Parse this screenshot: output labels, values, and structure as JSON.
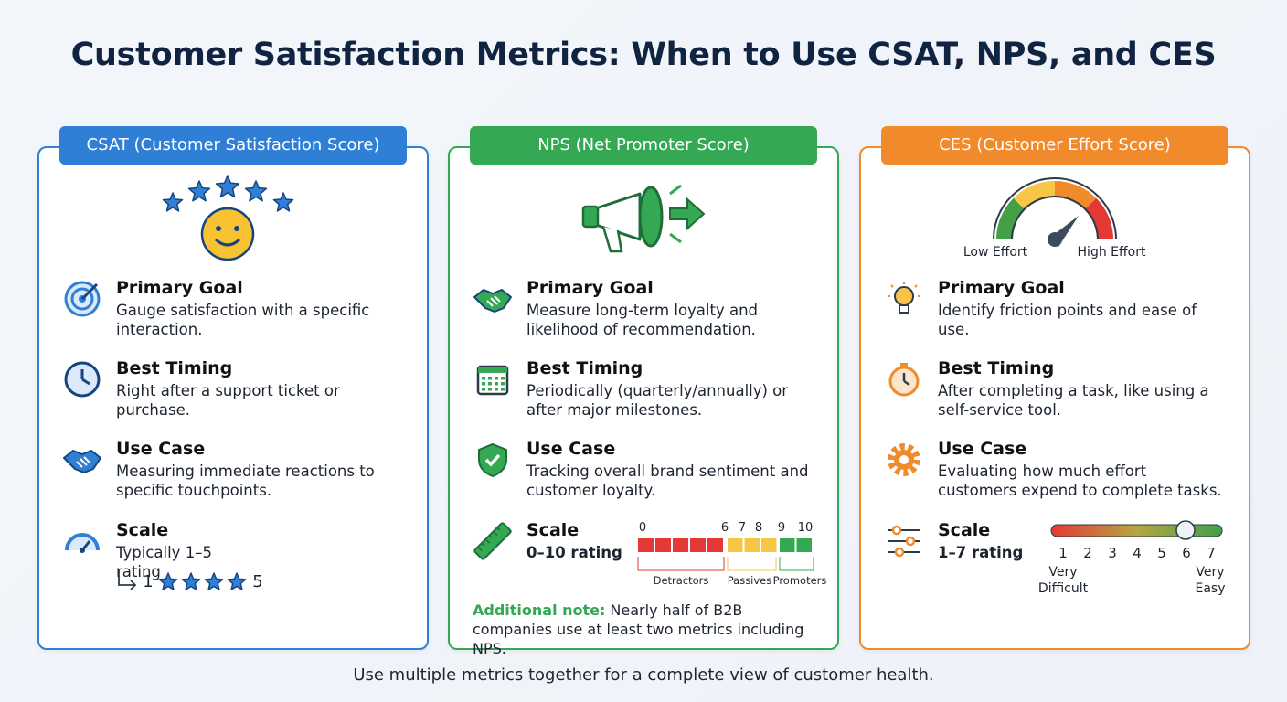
{
  "title": "Customer Satisfaction Metrics: When to Use CSAT, NPS, and CES",
  "cards": [
    {
      "header": "CSAT (Customer Satisfaction Score)",
      "sections": [
        {
          "label": "Primary Goal",
          "text": "Gauge satisfaction with a specific interaction."
        },
        {
          "label": "Best Timing",
          "text": "Right after a support ticket or purchase."
        },
        {
          "label": "Use Case",
          "text": "Measuring immediate reactions to specific touchpoints."
        },
        {
          "label": "Scale",
          "text": "Typically 1–5 rating"
        }
      ],
      "scale_example": {
        "min": 1,
        "max": 5
      }
    },
    {
      "header": "NPS (Net Promoter Score)",
      "sections": [
        {
          "label": "Primary Goal",
          "text": "Measure long-term loyalty and likelihood of recommendation."
        },
        {
          "label": "Best Timing",
          "text": "Periodically (quarterly/annually) or after major milestones."
        },
        {
          "label": "Use Case",
          "text": "Tracking overall brand sentiment and customer loyalty."
        },
        {
          "label": "Scale",
          "text": "0–10 rating"
        }
      ],
      "scale": {
        "ticks": [
          0,
          6,
          7,
          8,
          9,
          10
        ],
        "groups": [
          "Detractors",
          "Passives",
          "Promoters"
        ]
      },
      "note": {
        "label": "Additional note:",
        "text": "Nearly half of B2B companies use at least two metrics including NPS."
      }
    },
    {
      "header": "CES (Customer Effort Score)",
      "gauge_labels": [
        "Low Effort",
        "High Effort"
      ],
      "sections": [
        {
          "label": "Primary Goal",
          "text": "Identify friction points and ease of use."
        },
        {
          "label": "Best Timing",
          "text": "After completing a task, like using a self-service tool."
        },
        {
          "label": "Use Case",
          "text": "Evaluating how much effort customers expend to complete tasks."
        },
        {
          "label": "Scale",
          "text": "1–7 rating"
        }
      ],
      "scale": {
        "ticks": [
          1,
          2,
          3,
          4,
          5,
          6,
          7
        ],
        "low_label": "Very Difficult",
        "high_label": "Very Easy"
      }
    }
  ],
  "footer": "Use multiple metrics together for a complete view of customer health."
}
